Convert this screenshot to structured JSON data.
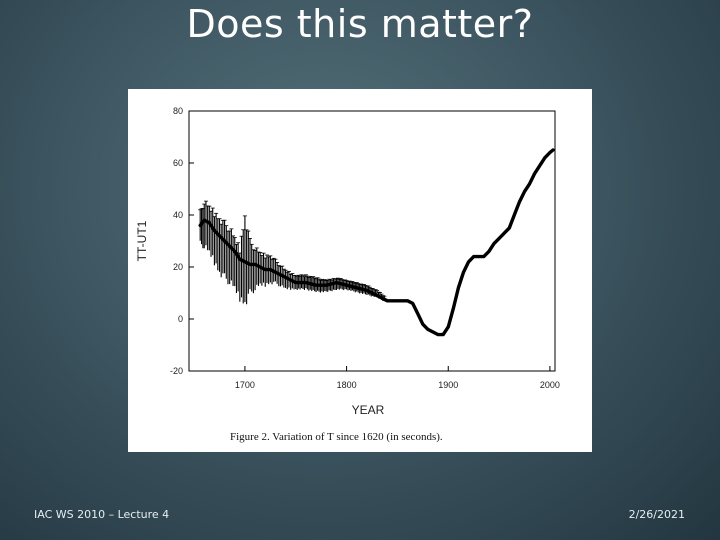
{
  "slide": {
    "title": "Does this matter?",
    "footer_left": "IAC WS 2010 – Lecture 4",
    "footer_right": "2/26/2021"
  },
  "chart_data": {
    "type": "line",
    "title": "",
    "caption": "Figure 2.  Variation of T since 1620 (in seconds).",
    "xlabel": "YEAR",
    "ylabel": "TT-UT1",
    "xlim": [
      1645,
      2005
    ],
    "ylim": [
      -20,
      80
    ],
    "x_ticks": [
      1700,
      1800,
      1900,
      2000
    ],
    "y_ticks": [
      -20,
      0,
      20,
      40,
      60,
      80
    ],
    "grid": false,
    "series": [
      {
        "x": [
          1656,
          1660,
          1665,
          1670,
          1675,
          1680,
          1685,
          1690,
          1695,
          1700,
          1705,
          1710,
          1715,
          1720,
          1725,
          1730,
          1735,
          1740,
          1745,
          1750,
          1760,
          1770,
          1780,
          1790,
          1800,
          1810,
          1820,
          1830,
          1840,
          1850,
          1860,
          1865,
          1870,
          1875,
          1880,
          1885,
          1890,
          1895,
          1900,
          1905,
          1910,
          1915,
          1920,
          1925,
          1930,
          1935,
          1940,
          1945,
          1950,
          1955,
          1960,
          1965,
          1970,
          1975,
          1980,
          1985,
          1990,
          1995,
          2000,
          2003
        ],
        "values": [
          36,
          38,
          37,
          34,
          32,
          30,
          28,
          26,
          23,
          22,
          21,
          21,
          20,
          19,
          19,
          18,
          17,
          16,
          15,
          14,
          14,
          13,
          13,
          14,
          13,
          12,
          11,
          9,
          7,
          7,
          7,
          6,
          2,
          -2,
          -4,
          -5,
          -6,
          -6,
          -3,
          4,
          12,
          18,
          22,
          24,
          24,
          24,
          26,
          29,
          31,
          33,
          35,
          40,
          45,
          49,
          52,
          56,
          59,
          62,
          64,
          65
        ],
        "upper": [
          42,
          46,
          44,
          42,
          40,
          38,
          36,
          32,
          28,
          42,
          31,
          28,
          26,
          25,
          25,
          23,
          21,
          19,
          18,
          17,
          17,
          16,
          15,
          16,
          15,
          14,
          13,
          11,
          8,
          8,
          8,
          7,
          3,
          -1,
          -3,
          -4,
          -5,
          -5,
          -2,
          5,
          13,
          19,
          23,
          25,
          25,
          25,
          27,
          30,
          32,
          34,
          36,
          41,
          46,
          50,
          53,
          57,
          60,
          63,
          65,
          66
        ],
        "lower": [
          28,
          26,
          24,
          20,
          16,
          14,
          12,
          10,
          6,
          3,
          8,
          10,
          12,
          12,
          13,
          13,
          12,
          11,
          11,
          11,
          11,
          10,
          10,
          11,
          11,
          10,
          9,
          8,
          6,
          6,
          6,
          5,
          1,
          -3,
          -5,
          -6,
          -7,
          -7,
          -4,
          3,
          11,
          17,
          21,
          23,
          23,
          23,
          25,
          28,
          30,
          32,
          34,
          39,
          44,
          48,
          51,
          55,
          58,
          61,
          63,
          64
        ]
      }
    ]
  }
}
